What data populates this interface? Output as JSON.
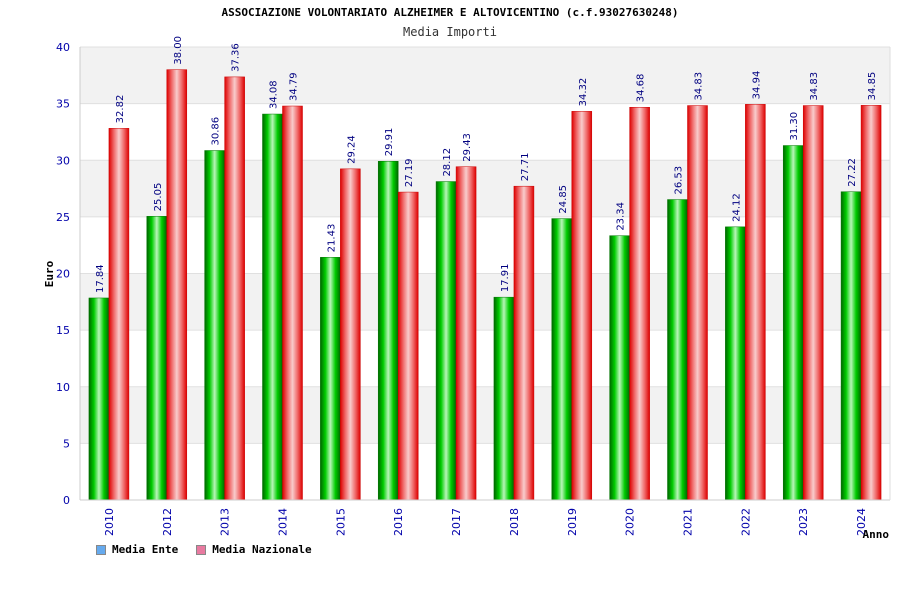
{
  "chart_data": {
    "type": "bar",
    "title": "ASSOCIAZIONE VOLONTARIATO ALZHEIMER E ALTOVICENTINO (c.f.93027630248)",
    "subtitle": "Media Importi",
    "xlabel": "Anno",
    "ylabel": "Euro",
    "ylim": [
      0,
      40
    ],
    "yticks": [
      0,
      5,
      10,
      15,
      20,
      25,
      30,
      35,
      40
    ],
    "categories": [
      "2010",
      "2012",
      "2013",
      "2014",
      "2015",
      "2016",
      "2017",
      "2018",
      "2019",
      "2020",
      "2021",
      "2022",
      "2023",
      "2024"
    ],
    "series": [
      {
        "name": "Media Ente",
        "color": "#00aa00",
        "labels": [
          "17.84",
          "25.05",
          "30.86",
          "34.08",
          "21.43",
          "29.91",
          "28.12",
          "17.91",
          "24.85",
          "23.34",
          "26.53",
          "24.12",
          "31.30",
          "27.22"
        ],
        "values": [
          17.84,
          25.05,
          30.86,
          34.08,
          21.43,
          29.91,
          28.12,
          17.91,
          24.85,
          23.34,
          26.53,
          24.12,
          31.3,
          27.22
        ]
      },
      {
        "name": "Media Nazionale",
        "color": "#ee1111",
        "labels": [
          "32.82",
          "38.00",
          "37.36",
          "34.79",
          "29.24",
          "27.19",
          "29.43",
          "27.71",
          "34.32",
          "34.68",
          "34.83",
          "34.94",
          "34.83",
          "34.85"
        ],
        "values": [
          32.82,
          38.0,
          37.36,
          34.79,
          29.24,
          27.19,
          29.43,
          27.71,
          34.32,
          34.68,
          34.83,
          34.94,
          34.83,
          34.85
        ]
      }
    ],
    "legend": [
      {
        "label": "Media Ente",
        "color": "#66aaee"
      },
      {
        "label": "Media Nazionale",
        "color": "#e87aa0"
      }
    ]
  }
}
